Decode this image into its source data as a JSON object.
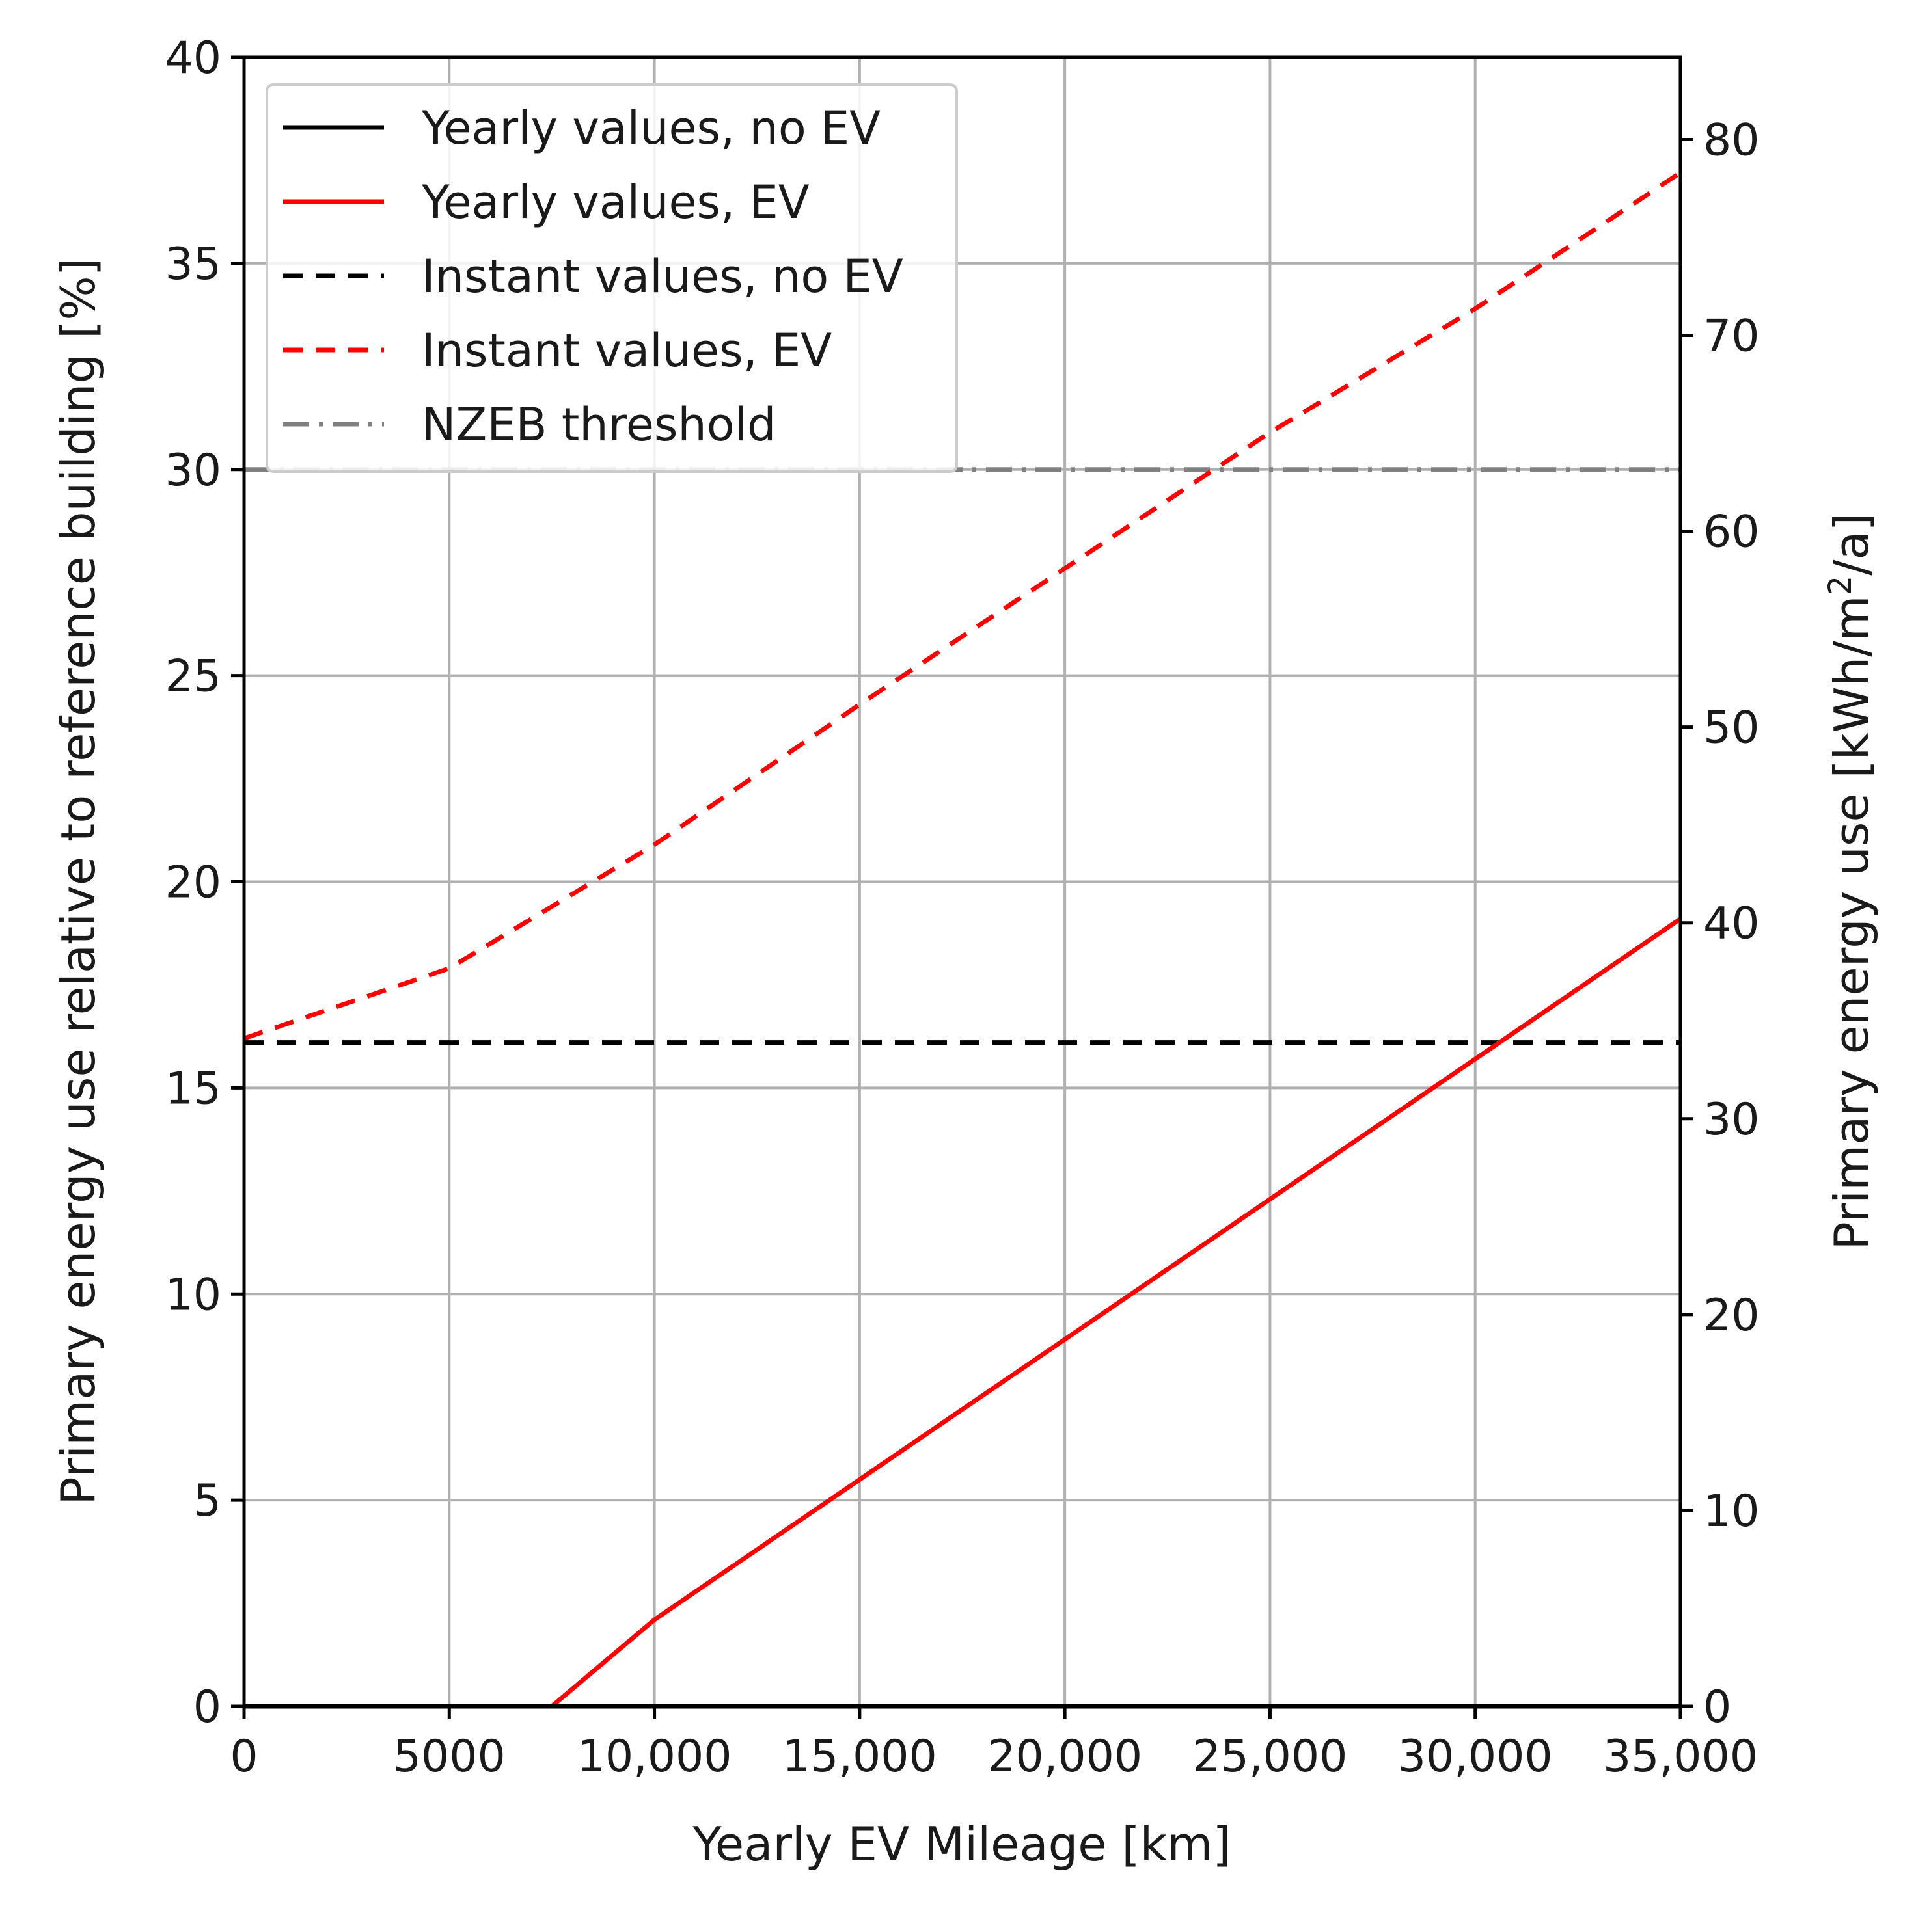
{
  "chart_data": {
    "type": "line",
    "xlabel": "Yearly EV Mileage [km]",
    "ylabel_left": "Primary energy use relative to reference building [%]",
    "ylabel_right": "Primary energy use [kWh/m²/a]",
    "xlim": [
      0,
      35000
    ],
    "ylim_left": [
      0,
      40
    ],
    "ylim_right": [
      0,
      84.2
    ],
    "x_ticks": [
      0,
      5000,
      10000,
      15000,
      20000,
      25000,
      30000,
      35000
    ],
    "x_tick_labels": [
      "0",
      "5000",
      "10,000",
      "15,000",
      "20,000",
      "25,000",
      "30,000",
      "35,000"
    ],
    "y_left_ticks": [
      0,
      5,
      10,
      15,
      20,
      25,
      30,
      35,
      40
    ],
    "y_left_tick_labels": [
      "0",
      "5",
      "10",
      "15",
      "20",
      "25",
      "30",
      "35",
      "40"
    ],
    "y_right_ticks": [
      0,
      10,
      20,
      30,
      40,
      50,
      60,
      70,
      80
    ],
    "y_right_tick_labels": [
      "0",
      "10",
      "20",
      "30",
      "40",
      "50",
      "60",
      "70",
      "80"
    ],
    "grid": true,
    "legend_position": "top-left",
    "series": [
      {
        "name": "Yearly values, no EV",
        "color": "#000000",
        "style": "solid",
        "x": [
          0,
          35000
        ],
        "values": [
          0,
          0
        ]
      },
      {
        "name": "Yearly values, EV",
        "color": "#ff0000",
        "style": "solid",
        "x": [
          0,
          5000,
          7500,
          10000,
          15000,
          20000,
          25000,
          30000,
          35000
        ],
        "values": [
          0,
          0,
          0,
          2.1,
          5.5,
          8.9,
          12.3,
          15.7,
          19.1
        ]
      },
      {
        "name": "Instant values, no EV",
        "color": "#000000",
        "style": "dashed",
        "x": [
          0,
          35000
        ],
        "values": [
          16.1,
          16.1
        ]
      },
      {
        "name": "Instant values, EV",
        "color": "#ff0000",
        "style": "dashed",
        "x": [
          0,
          5000,
          10000,
          15000,
          20000,
          25000,
          30000,
          35000
        ],
        "values": [
          16.2,
          17.9,
          20.9,
          24.3,
          27.6,
          30.9,
          33.9,
          37.2
        ]
      },
      {
        "name": "NZEB threshold",
        "color": "#808080",
        "style": "dashdot",
        "x": [
          0,
          35000
        ],
        "values": [
          30,
          30
        ]
      }
    ]
  }
}
